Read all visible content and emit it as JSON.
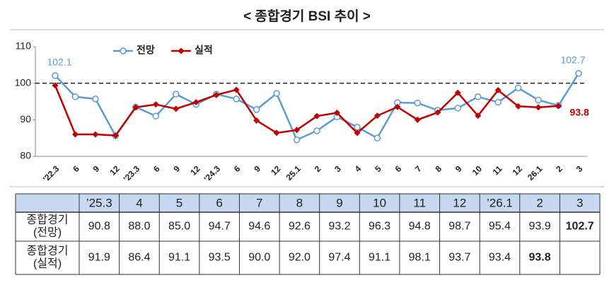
{
  "chart_data": {
    "type": "line",
    "title": "< 종합경기 BSI 추이 >",
    "categories": [
      "'22.3",
      "6",
      "9",
      "12",
      "'23.3",
      "6",
      "9",
      "12",
      "'24.3",
      "6",
      "9",
      "12",
      "25.1",
      "2",
      "3",
      "4",
      "5",
      "6",
      "7",
      "8",
      "9",
      "10",
      "11",
      "12",
      "26.1",
      "2",
      "3"
    ],
    "series": [
      {
        "name": "전망",
        "color": "#5b9bd5",
        "marker": "circle",
        "labeled": [
          0,
          26
        ],
        "values": [
          102.1,
          96.3,
          95.7,
          85.6,
          93.5,
          91.0,
          97.0,
          94.2,
          97.0,
          95.7,
          92.8,
          97.2,
          84.5,
          87.0,
          90.8,
          88.0,
          85.0,
          94.7,
          94.6,
          92.6,
          93.2,
          96.3,
          94.8,
          98.7,
          95.4,
          93.9,
          102.7
        ]
      },
      {
        "name": "실적",
        "color": "#c00000",
        "marker": "diamond",
        "labeled": [
          25
        ],
        "values": [
          99.4,
          86.0,
          86.0,
          85.7,
          93.4,
          94.2,
          93.0,
          94.8,
          96.8,
          98.2,
          89.8,
          86.4,
          87.2,
          91.0,
          91.9,
          86.4,
          91.1,
          93.5,
          90.0,
          92.0,
          97.4,
          91.1,
          98.1,
          93.7,
          93.4,
          93.8,
          null
        ]
      }
    ],
    "ylim": [
      80,
      110
    ],
    "yticks": [
      80,
      90,
      100,
      110
    ],
    "reference_line": 100,
    "legend": "top-left"
  },
  "table": {
    "header": [
      "’25.3",
      "4",
      "5",
      "6",
      "7",
      "8",
      "9",
      "10",
      "11",
      "12",
      "’26.1",
      "2",
      "3"
    ],
    "rows": [
      {
        "label": [
          "종합경기",
          "(전망)"
        ],
        "cells": [
          "90.8",
          "88.0",
          "85.0",
          "94.7",
          "94.6",
          "92.6",
          "93.2",
          "96.3",
          "94.8",
          "98.7",
          "95.4",
          "93.9",
          "102.7"
        ]
      },
      {
        "label": [
          "종합경기",
          "(실적)"
        ],
        "cells": [
          "91.9",
          "86.4",
          "91.1",
          "93.5",
          "90.0",
          "92.0",
          "97.4",
          "91.1",
          "98.1",
          "93.7",
          "93.4",
          "93.8"
        ]
      }
    ]
  }
}
